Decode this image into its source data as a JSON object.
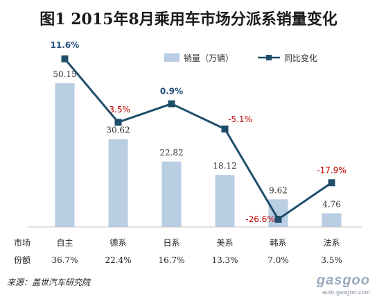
{
  "title": "图1  2015年8月乘用车市场分派系销量变化",
  "source": "来源：盖世汽车研究院",
  "watermark": {
    "brand": "gasgoo",
    "url": "auto.gasgoo.com"
  },
  "row_labels": {
    "share_header_1": "市场",
    "share_header_2": "份额"
  },
  "shares": [
    "36.7%",
    "22.4%",
    "16.7%",
    "13.3%",
    "7.0%",
    "3.5%"
  ],
  "colors": {
    "bar": "#b9cde3",
    "line": "#1f4e6b",
    "positive": "#1f4e79",
    "negative": "#c00000"
  },
  "chart_data": {
    "type": "bar",
    "categories": [
      "自主",
      "德系",
      "日系",
      "美系",
      "韩系",
      "法系"
    ],
    "series": [
      {
        "name": "销量（万辆）",
        "type": "bar",
        "values": [
          50.15,
          30.62,
          22.82,
          18.12,
          9.62,
          4.76
        ],
        "labels": [
          "50.15",
          "30.62",
          "22.82",
          "18.12",
          "9.62",
          "4.76"
        ]
      },
      {
        "name": "同比变化",
        "type": "line",
        "values": [
          11.6,
          -3.5,
          0.9,
          -5.1,
          -26.6,
          -17.9
        ],
        "labels": [
          "11.6%",
          "-3.5%",
          "0.9%",
          "-5.1%",
          "-26.6%",
          "-17.9%"
        ]
      }
    ],
    "legend_position": "top-right"
  }
}
